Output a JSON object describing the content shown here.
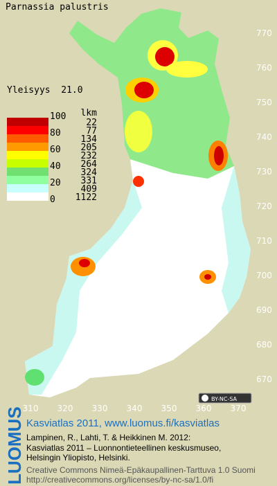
{
  "title": "Parnassia palustris",
  "frequency_label": "Yleisyys  21.0",
  "legend": {
    "count_header": "lkm",
    "levels": [
      100,
      80,
      60,
      40,
      20,
      0
    ],
    "counts": [
      22,
      77,
      134,
      205,
      232,
      264,
      324,
      331,
      409,
      1122
    ]
  },
  "grid_labels": {
    "north": [
      770,
      760,
      750,
      740,
      730,
      720,
      710,
      700,
      690,
      680,
      670
    ],
    "east": [
      310,
      320,
      330,
      340,
      350,
      360,
      370
    ]
  },
  "license_badge": "BY-NC-SA",
  "footer": {
    "brand": "LUOMUS",
    "heading": "Kasviatlas 2011, www.luomus.fi/kasviatlas",
    "citation": [
      "Lampinen, R., Lahti, T. & Heikkinen M. 2012:",
      "Kasviatlas 2011 – Luonnontieteellinen keskusmuseo,",
      "Helsingin Yliopisto, Helsinki."
    ],
    "license": [
      "Creative Commons Nimeä-Epäkaupallinen-Tarttuva 1.0 Suomi",
      "http://creativecommons.org/licenses/by-nc-sa/1.0/fi"
    ]
  }
}
